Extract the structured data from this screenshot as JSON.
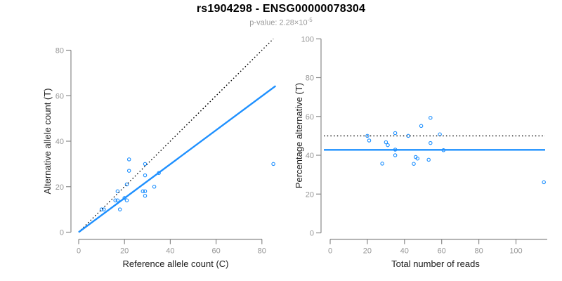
{
  "header": {
    "title": "rs1904298 - ENSG00000078304",
    "subtitle_prefix": "p-value: 2.28×10",
    "subtitle_exponent": "-5"
  },
  "colors": {
    "accent": "#1E90FF",
    "line_black": "#000000",
    "axis": "#8a8a8a",
    "tick_label": "#979797",
    "axis_title": "#1a1a1a"
  },
  "chart_data": [
    {
      "type": "scatter",
      "name": "allele-counts-scatter",
      "xlabel": "Reference allele count (C)",
      "ylabel": "Alternative allele count (T)",
      "xlim": [
        0,
        85
      ],
      "ylim": [
        0,
        85
      ],
      "xticks": [
        0,
        20,
        40,
        60,
        80
      ],
      "yticks": [
        0,
        20,
        40,
        60,
        80
      ],
      "grid": false,
      "legend": "none",
      "points": [
        [
          10,
          10
        ],
        [
          11,
          10
        ],
        [
          16,
          14
        ],
        [
          17,
          14
        ],
        [
          18,
          10
        ],
        [
          17,
          18
        ],
        [
          20,
          15
        ],
        [
          21,
          14
        ],
        [
          21,
          21
        ],
        [
          22,
          27
        ],
        [
          22,
          32
        ],
        [
          28,
          18
        ],
        [
          29,
          16
        ],
        [
          29,
          18
        ],
        [
          29,
          25
        ],
        [
          29,
          30
        ],
        [
          33,
          20
        ],
        [
          35,
          26
        ],
        [
          85,
          30
        ]
      ],
      "lines": [
        {
          "name": "identity-line",
          "style": "dotted",
          "color": "#000000",
          "x1": 0,
          "y1": 0,
          "x2": 85,
          "y2": 85
        },
        {
          "name": "regression-line",
          "style": "solid",
          "color": "#1E90FF",
          "x1": 0,
          "y1": 0,
          "x2": 86,
          "y2": 64.3
        }
      ]
    },
    {
      "type": "scatter",
      "name": "percentage-alternative-scatter",
      "xlabel": "Total number of reads",
      "ylabel": "Percentage alternative (T)",
      "xlim": [
        0,
        115
      ],
      "ylim": [
        0,
        100
      ],
      "xticks": [
        0,
        20,
        40,
        60,
        80,
        100
      ],
      "yticks": [
        0,
        20,
        40,
        60,
        80,
        100
      ],
      "grid": false,
      "legend": "none",
      "points": [
        [
          20,
          50
        ],
        [
          21,
          47.6
        ],
        [
          28,
          35.7
        ],
        [
          30,
          46.7
        ],
        [
          31,
          45.2
        ],
        [
          35,
          51.4
        ],
        [
          35,
          42.9
        ],
        [
          35,
          40
        ],
        [
          42,
          50
        ],
        [
          45,
          35.6
        ],
        [
          46,
          39.1
        ],
        [
          47,
          38.3
        ],
        [
          49,
          55.1
        ],
        [
          53,
          37.7
        ],
        [
          54,
          46.3
        ],
        [
          54,
          59.3
        ],
        [
          59,
          50.8
        ],
        [
          61,
          42.6
        ],
        [
          115,
          26.1
        ]
      ],
      "lines": [
        {
          "name": "expected-50pct-line",
          "style": "dotted",
          "color": "#000000",
          "y": 50
        },
        {
          "name": "observed-pct-line",
          "style": "solid",
          "color": "#1E90FF",
          "y": 42.8
        }
      ]
    }
  ]
}
